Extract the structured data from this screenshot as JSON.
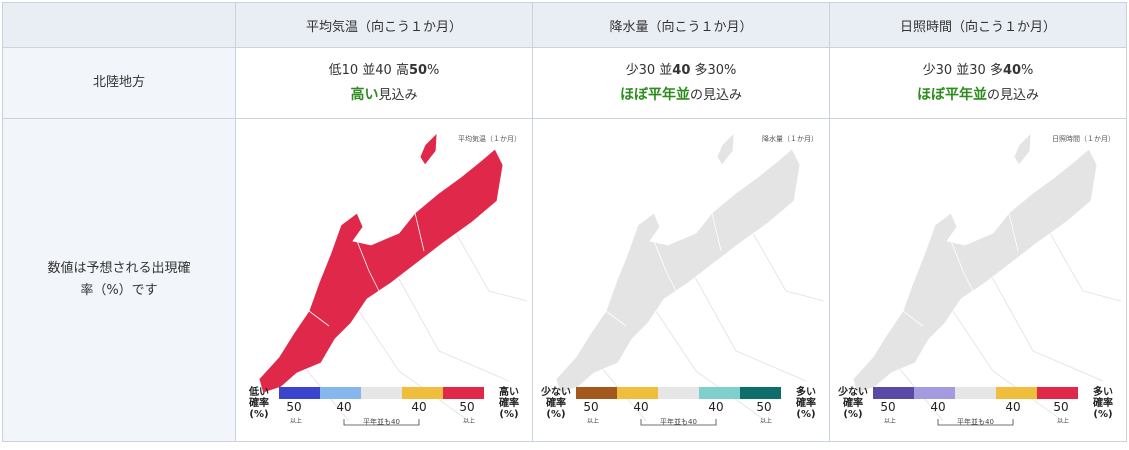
{
  "table": {
    "header": [
      "平均気温（向こう１か月）",
      "降水量（向こう１か月）",
      "日照時間（向こう１か月）"
    ],
    "rows": [
      {
        "label": "北陸地方",
        "cells": [
          {
            "probability": [
              "低10 並40 高",
              "50",
              "%"
            ],
            "outlook": [
              "高い",
              "見込み"
            ]
          },
          {
            "probability": [
              "少30 並",
              "40",
              " 多30%"
            ],
            "outlook": [
              "ほぼ平年並",
              "の見込み"
            ]
          },
          {
            "probability": [
              "少30 並30 多",
              "40",
              "%"
            ],
            "outlook": [
              "ほぼ平年並",
              "の見込み"
            ]
          }
        ]
      },
      {
        "label": "数値は予想される出現確率（%）です",
        "maps": [
          {
            "title": "平均気温（１か月）",
            "fill": "#e0284a",
            "low_label": [
              "低い",
              "確率",
              "(%)"
            ],
            "high_label": [
              "高い",
              "確率",
              "(%)"
            ],
            "colors": [
              "#3a44cc",
              "#86b6ee",
              "#e6e6e6",
              "#f0be3c",
              "#e0284a"
            ]
          },
          {
            "title": "降水量（１か月）",
            "fill": "#e4e4e4",
            "low_label": [
              "少ない",
              "確率",
              "(%)"
            ],
            "high_label": [
              "多い",
              "確率",
              "(%)"
            ],
            "colors": [
              "#a4581c",
              "#f0be3c",
              "#e6e6e6",
              "#7fd0cc",
              "#0d6e6a"
            ]
          },
          {
            "title": "日照時間（１か月）",
            "fill": "#e4e4e4",
            "low_label": [
              "少ない",
              "確率",
              "(%)"
            ],
            "high_label": [
              "多い",
              "確率",
              "(%)"
            ],
            "colors": [
              "#5a4aa8",
              "#a49ae0",
              "#e6e6e6",
              "#f0be3c",
              "#e0284a"
            ]
          }
        ],
        "legend_ticks": [
          "50",
          "40",
          "40",
          "50"
        ],
        "legend_above": "以上",
        "legend_note": "平年並も40"
      }
    ]
  }
}
